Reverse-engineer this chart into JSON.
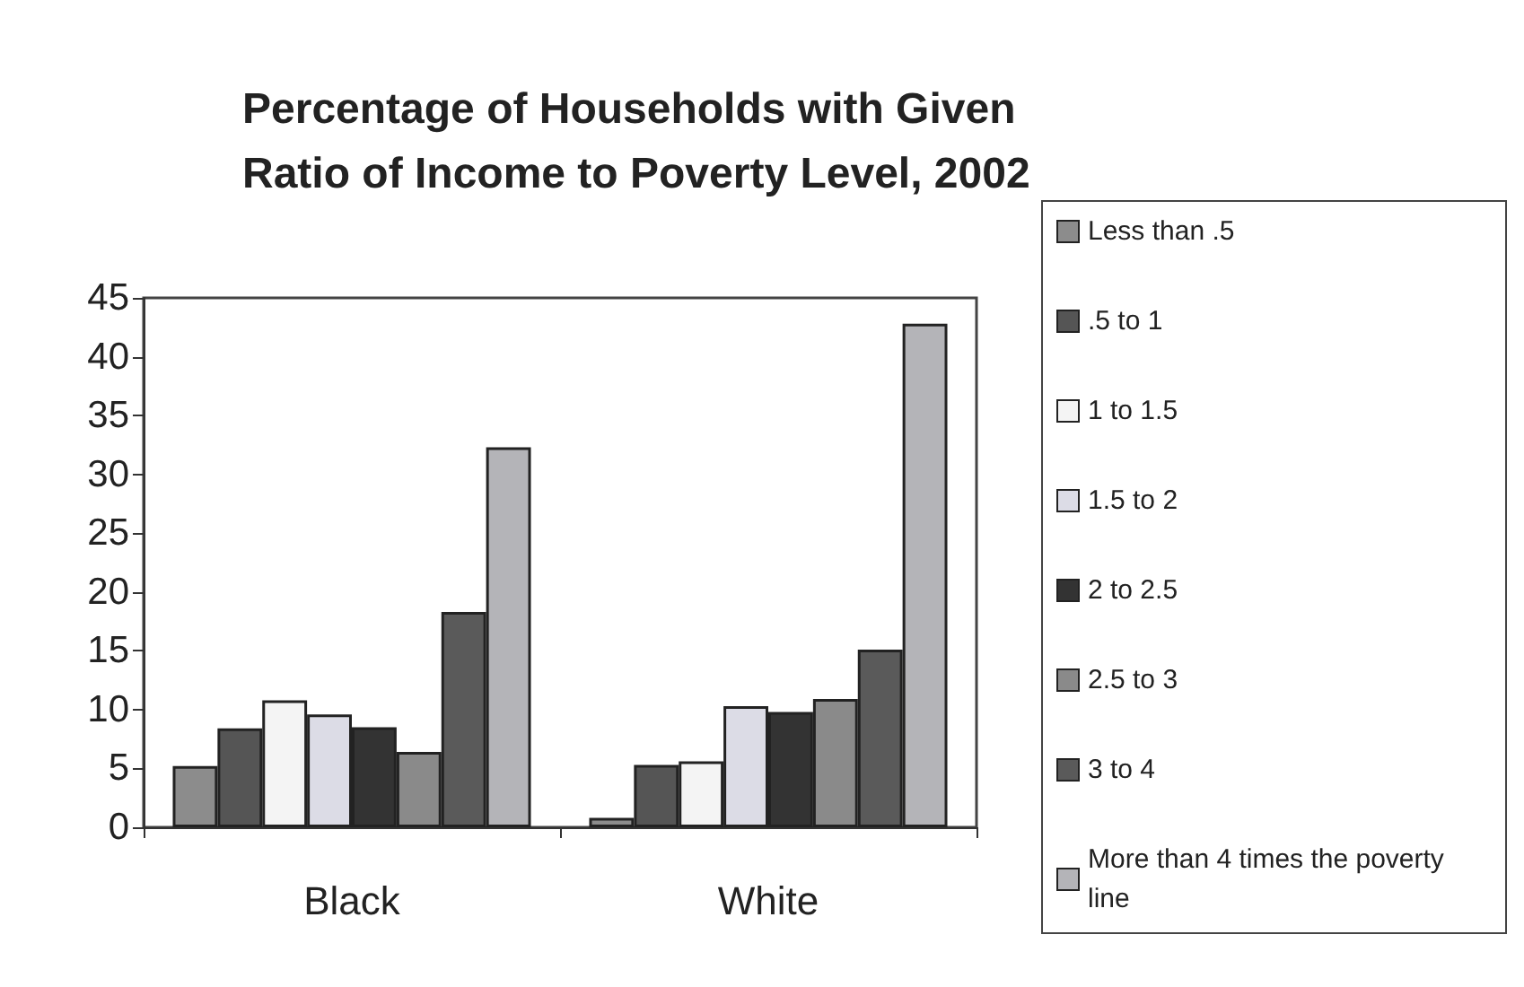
{
  "chart_data": {
    "type": "bar",
    "title": "Percentage of Households with Given\nRatio of Income to Poverty Level, 2002",
    "categories": [
      "Black",
      "White"
    ],
    "series": [
      {
        "name": "Less than .5",
        "color": "#8c8c8c",
        "values": [
          5.2,
          0.8
        ]
      },
      {
        "name": ".5 to 1",
        "color": "#555555",
        "values": [
          8.4,
          5.3
        ]
      },
      {
        "name": "1 to 1.5",
        "color": "#f4f4f4",
        "values": [
          10.8,
          5.6
        ]
      },
      {
        "name": "1.5 to 2",
        "color": "#dcdce6",
        "values": [
          9.6,
          10.3
        ]
      },
      {
        "name": "2 to 2.5",
        "color": "#333333",
        "values": [
          8.5,
          9.8
        ]
      },
      {
        "name": "2.5 to 3",
        "color": "#8a8a8a",
        "values": [
          6.4,
          10.9
        ]
      },
      {
        "name": "3 to 4",
        "color": "#5a5a5a",
        "values": [
          18.3,
          15.1
        ]
      },
      {
        "name": "More than 4 times the poverty line",
        "color": "#b4b4b8",
        "values": [
          32.3,
          42.8
        ]
      }
    ],
    "ylim": [
      0,
      45
    ],
    "yticks": [
      0,
      5,
      10,
      15,
      20,
      25,
      30,
      35,
      40,
      45
    ],
    "grid": false,
    "legend": "right"
  }
}
